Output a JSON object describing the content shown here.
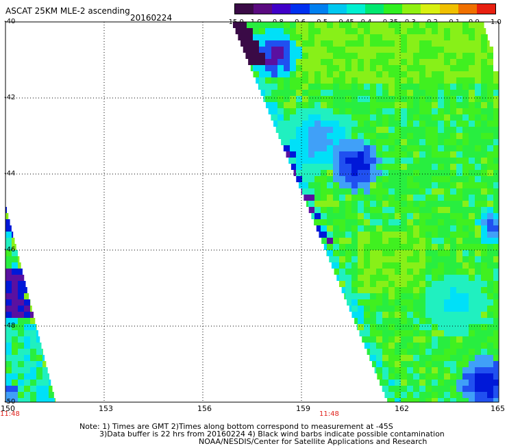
{
  "header": {
    "title": "ASCAT 25KM MLE-2 ascending",
    "date": "20160224"
  },
  "colorbar": {
    "labels": [
      "-15.0",
      "-1.0",
      "-0.8",
      "-0.6",
      "-0.5",
      "-0.45",
      "-0.4",
      "-0.35",
      "-0.3",
      "-0.2",
      "-0.1",
      "0.0",
      "1.0"
    ],
    "colors": [
      "#3a0a46",
      "#5a0a80",
      "#4000c8",
      "#0030f0",
      "#0080f0",
      "#00c8f0",
      "#00f0d0",
      "#00e870",
      "#30f020",
      "#90f010",
      "#d8f010",
      "#f0c000",
      "#f07000",
      "#e82010"
    ]
  },
  "map": {
    "lat_labels": [
      "-40",
      "-42",
      "-44",
      "-46",
      "-48",
      "-50"
    ],
    "lon_labels": [
      "150",
      "153",
      "156",
      "159",
      "162",
      "165"
    ],
    "orbit_times": [
      "11:48",
      "11:48"
    ],
    "palette": {
      "deep_purple": "#3a0a46",
      "purple": "#5a10a0",
      "blue": "#0018d8",
      "mid_blue": "#2050f0",
      "light_blue": "#40a0f8",
      "cyan": "#00e0f8",
      "aqua": "#20f0c0",
      "green": "#28ee40",
      "bright_green": "#40f020",
      "lime": "#88f018",
      "yellow_green": "#b0f020"
    }
  },
  "footer": {
    "line1": "Note: 1) Times are GMT 2)Times along bottom correspond to measurement at -45S",
    "line2": "3)Data buffer is 22 hrs from 20160224 4) Black wind barbs indicate possible contamination",
    "line3": "NOAA/NESDIS/Center for Satellite Applications and Research"
  }
}
